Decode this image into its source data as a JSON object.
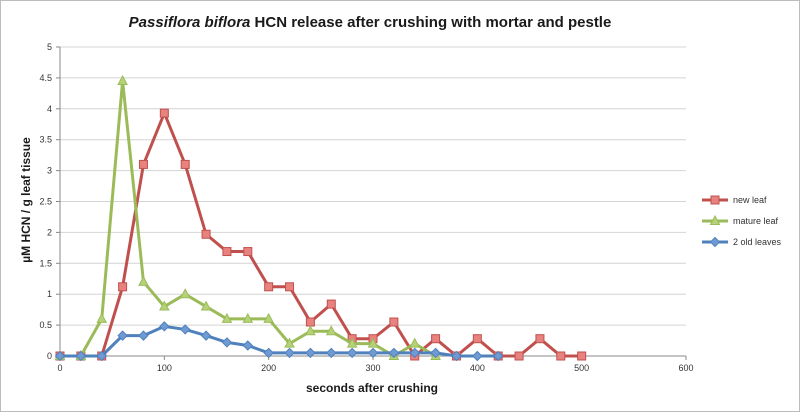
{
  "chart_data": {
    "type": "line",
    "title_italic": "Passiflora biflora",
    "title_rest": " HCN release after crushing with mortar and pestle",
    "xlabel": "seconds after crushing",
    "ylabel": "µM HCN / g leaf tissue",
    "xlim": [
      0,
      600
    ],
    "ylim": [
      0,
      5
    ],
    "xticks": [
      0,
      100,
      200,
      300,
      400,
      500,
      600
    ],
    "yticks": [
      0,
      0.5,
      1,
      1.5,
      2,
      2.5,
      3,
      3.5,
      4,
      4.5,
      5
    ],
    "grid": true,
    "legend_position": "right",
    "series": [
      {
        "name": "new leaf",
        "color": "#c0504d",
        "fill": "#e8827f",
        "marker": "square",
        "x": [
          0,
          20,
          40,
          60,
          80,
          100,
          120,
          140,
          160,
          180,
          200,
          220,
          240,
          260,
          280,
          300,
          320,
          340,
          360,
          380,
          400,
          420,
          440,
          460,
          480,
          500
        ],
        "y": [
          0,
          0,
          0,
          1.12,
          3.1,
          3.93,
          3.1,
          1.97,
          1.69,
          1.69,
          1.12,
          1.12,
          0.55,
          0.84,
          0.28,
          0.28,
          0.55,
          0,
          0.28,
          0,
          0.28,
          0,
          0,
          0.28,
          0,
          0
        ]
      },
      {
        "name": "mature leaf",
        "color": "#9bbb59",
        "fill": "#b5d279",
        "marker": "triangle",
        "x": [
          0,
          20,
          40,
          60,
          80,
          100,
          120,
          140,
          160,
          180,
          200,
          220,
          240,
          260,
          280,
          300,
          320,
          340,
          360
        ],
        "y": [
          0,
          0,
          0.6,
          4.45,
          1.2,
          0.8,
          1.0,
          0.8,
          0.6,
          0.6,
          0.6,
          0.2,
          0.4,
          0.4,
          0.2,
          0.2,
          0,
          0.2,
          0
        ]
      },
      {
        "name": "2 old leaves",
        "color": "#4f81bd",
        "fill": "#6f9ad3",
        "marker": "diamond",
        "x": [
          0,
          20,
          40,
          60,
          80,
          100,
          120,
          140,
          160,
          180,
          200,
          220,
          240,
          260,
          280,
          300,
          320,
          340,
          360,
          380,
          400,
          420
        ],
        "y": [
          0,
          0,
          0,
          0.33,
          0.33,
          0.48,
          0.43,
          0.33,
          0.22,
          0.17,
          0.05,
          0.05,
          0.05,
          0.05,
          0.05,
          0.05,
          0.05,
          0.05,
          0.05,
          0,
          0,
          0
        ]
      }
    ]
  }
}
